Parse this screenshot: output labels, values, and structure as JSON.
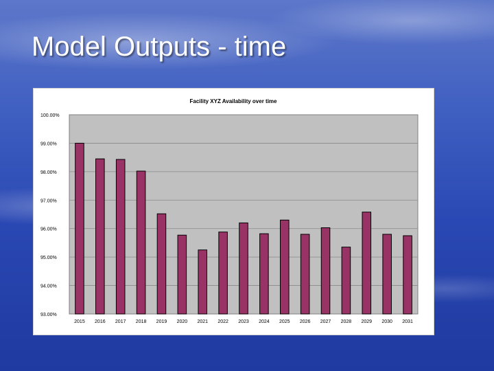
{
  "slide": {
    "title": "Model Outputs - time"
  },
  "colors": {
    "bar_fill": "#993366",
    "plot_bg": "#c0c0c0",
    "bar_stroke": "#000000"
  },
  "chart_data": {
    "type": "bar",
    "title": "Facility XYZ Availability over time",
    "xlabel": "",
    "ylabel": "",
    "categories": [
      "2015",
      "2016",
      "2017",
      "2018",
      "2019",
      "2020",
      "2021",
      "2022",
      "2023",
      "2024",
      "2025",
      "2026",
      "2027",
      "2028",
      "2029",
      "2030",
      "2031"
    ],
    "values": [
      99.0,
      98.45,
      98.43,
      98.02,
      96.52,
      95.77,
      95.25,
      95.88,
      96.2,
      95.82,
      96.3,
      95.8,
      96.03,
      95.35,
      96.58,
      95.8,
      95.75
    ],
    "ylim": [
      93,
      100
    ],
    "yticks": [
      "93.00%",
      "94.00%",
      "95.00%",
      "96.00%",
      "97.00%",
      "98.00%",
      "99.00%",
      "100.00%"
    ],
    "grid": true,
    "legend": "none"
  }
}
